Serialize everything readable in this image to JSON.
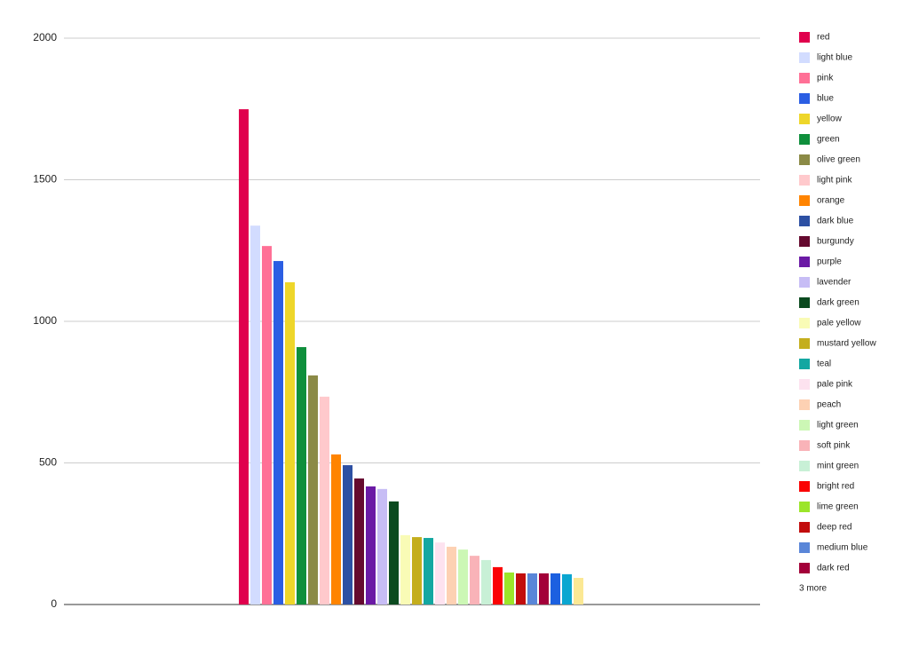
{
  "chart_data": {
    "type": "bar",
    "categories": [
      "red",
      "light blue",
      "pink",
      "blue",
      "yellow",
      "green",
      "olive green",
      "light pink",
      "orange",
      "dark blue",
      "burgundy",
      "purple",
      "lavender",
      "dark green",
      "pale yellow",
      "mustard yellow",
      "teal",
      "pale pink",
      "peach",
      "light green",
      "soft pink",
      "mint green",
      "bright red",
      "lime green",
      "deep red",
      "medium blue",
      "dark red",
      null,
      null,
      null
    ],
    "values": [
      1749,
      1338,
      1266,
      1213,
      1138,
      909,
      809,
      734,
      530,
      492,
      445,
      417,
      408,
      364,
      245,
      238,
      235,
      219,
      204,
      194,
      172,
      157,
      132,
      113,
      110,
      110,
      110,
      110,
      107,
      94
    ],
    "colors": [
      "#e0004d",
      "#d2dcff",
      "#ff7096",
      "#2b5ee3",
      "#eed62a",
      "#0f8f3c",
      "#8b8a46",
      "#ffc9cc",
      "#ff8400",
      "#2d50a3",
      "#650a2f",
      "#6b1aa5",
      "#c7bdf5",
      "#0b4a1f",
      "#f9fbb6",
      "#c4ae1d",
      "#13a7a1",
      "#fde2ef",
      "#fdd1b3",
      "#ccf7b5",
      "#f9b3b8",
      "#c8f0d6",
      "#fa0303",
      "#9be529",
      "#c20d0d",
      "#5a86d8",
      "#a30039",
      "#1c60e0",
      "#0aa6d1",
      "#fbe894"
    ],
    "ylim": [
      0,
      2000
    ],
    "yticks": [
      0,
      500,
      1000,
      1500,
      2000
    ],
    "grid": true,
    "legend_overflow": "3 more"
  }
}
